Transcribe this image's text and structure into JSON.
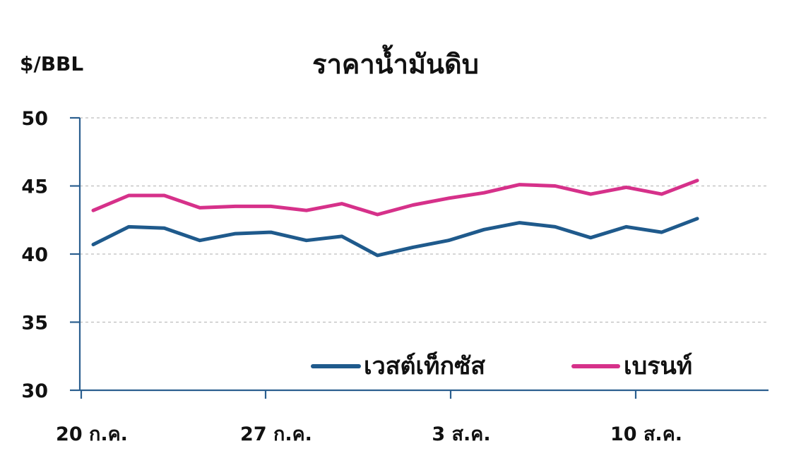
{
  "chart_data": {
    "type": "line",
    "title": "ราคาน้ำมันดิบ",
    "ylabel": "$/BBL",
    "xlabel": "",
    "ylim": [
      30,
      50
    ],
    "yticks": [
      "50",
      "45",
      "40",
      "35",
      "30"
    ],
    "xtick_labels": [
      "20 ก.ค.",
      "27 ก.ค.",
      "3 ส.ค.",
      "10 ส.ค."
    ],
    "x": [
      "20 ก.ค.",
      "21 ก.ค.",
      "22 ก.ค.",
      "23 ก.ค.",
      "26 ก.ค.",
      "27 ก.ค.",
      "28 ก.ค.",
      "29 ก.ค.",
      "30 ก.ค.",
      "2 ส.ค.",
      "3 ส.ค.",
      "4 ส.ค.",
      "5 ส.ค.",
      "6 ส.ค.",
      "9 ส.ค.",
      "10 ส.ค.",
      "11 ส.ค.",
      "12 ส.ค."
    ],
    "series": [
      {
        "name": "เวสต์เท็กซัส",
        "color": "#1f5a8c",
        "values": [
          40.7,
          42.0,
          41.9,
          41.0,
          41.5,
          41.6,
          41.0,
          41.3,
          39.9,
          40.5,
          41.0,
          41.8,
          42.3,
          42.0,
          41.2,
          42.0,
          41.6,
          42.6
        ]
      },
      {
        "name": "เบรนท์",
        "color": "#d6318a",
        "values": [
          43.2,
          44.3,
          44.3,
          43.4,
          43.5,
          43.5,
          43.2,
          43.7,
          42.9,
          43.6,
          44.1,
          44.5,
          45.1,
          45.0,
          44.4,
          44.9,
          44.4,
          45.4
        ]
      }
    ],
    "grid": true,
    "legend_position": "bottom-right"
  }
}
